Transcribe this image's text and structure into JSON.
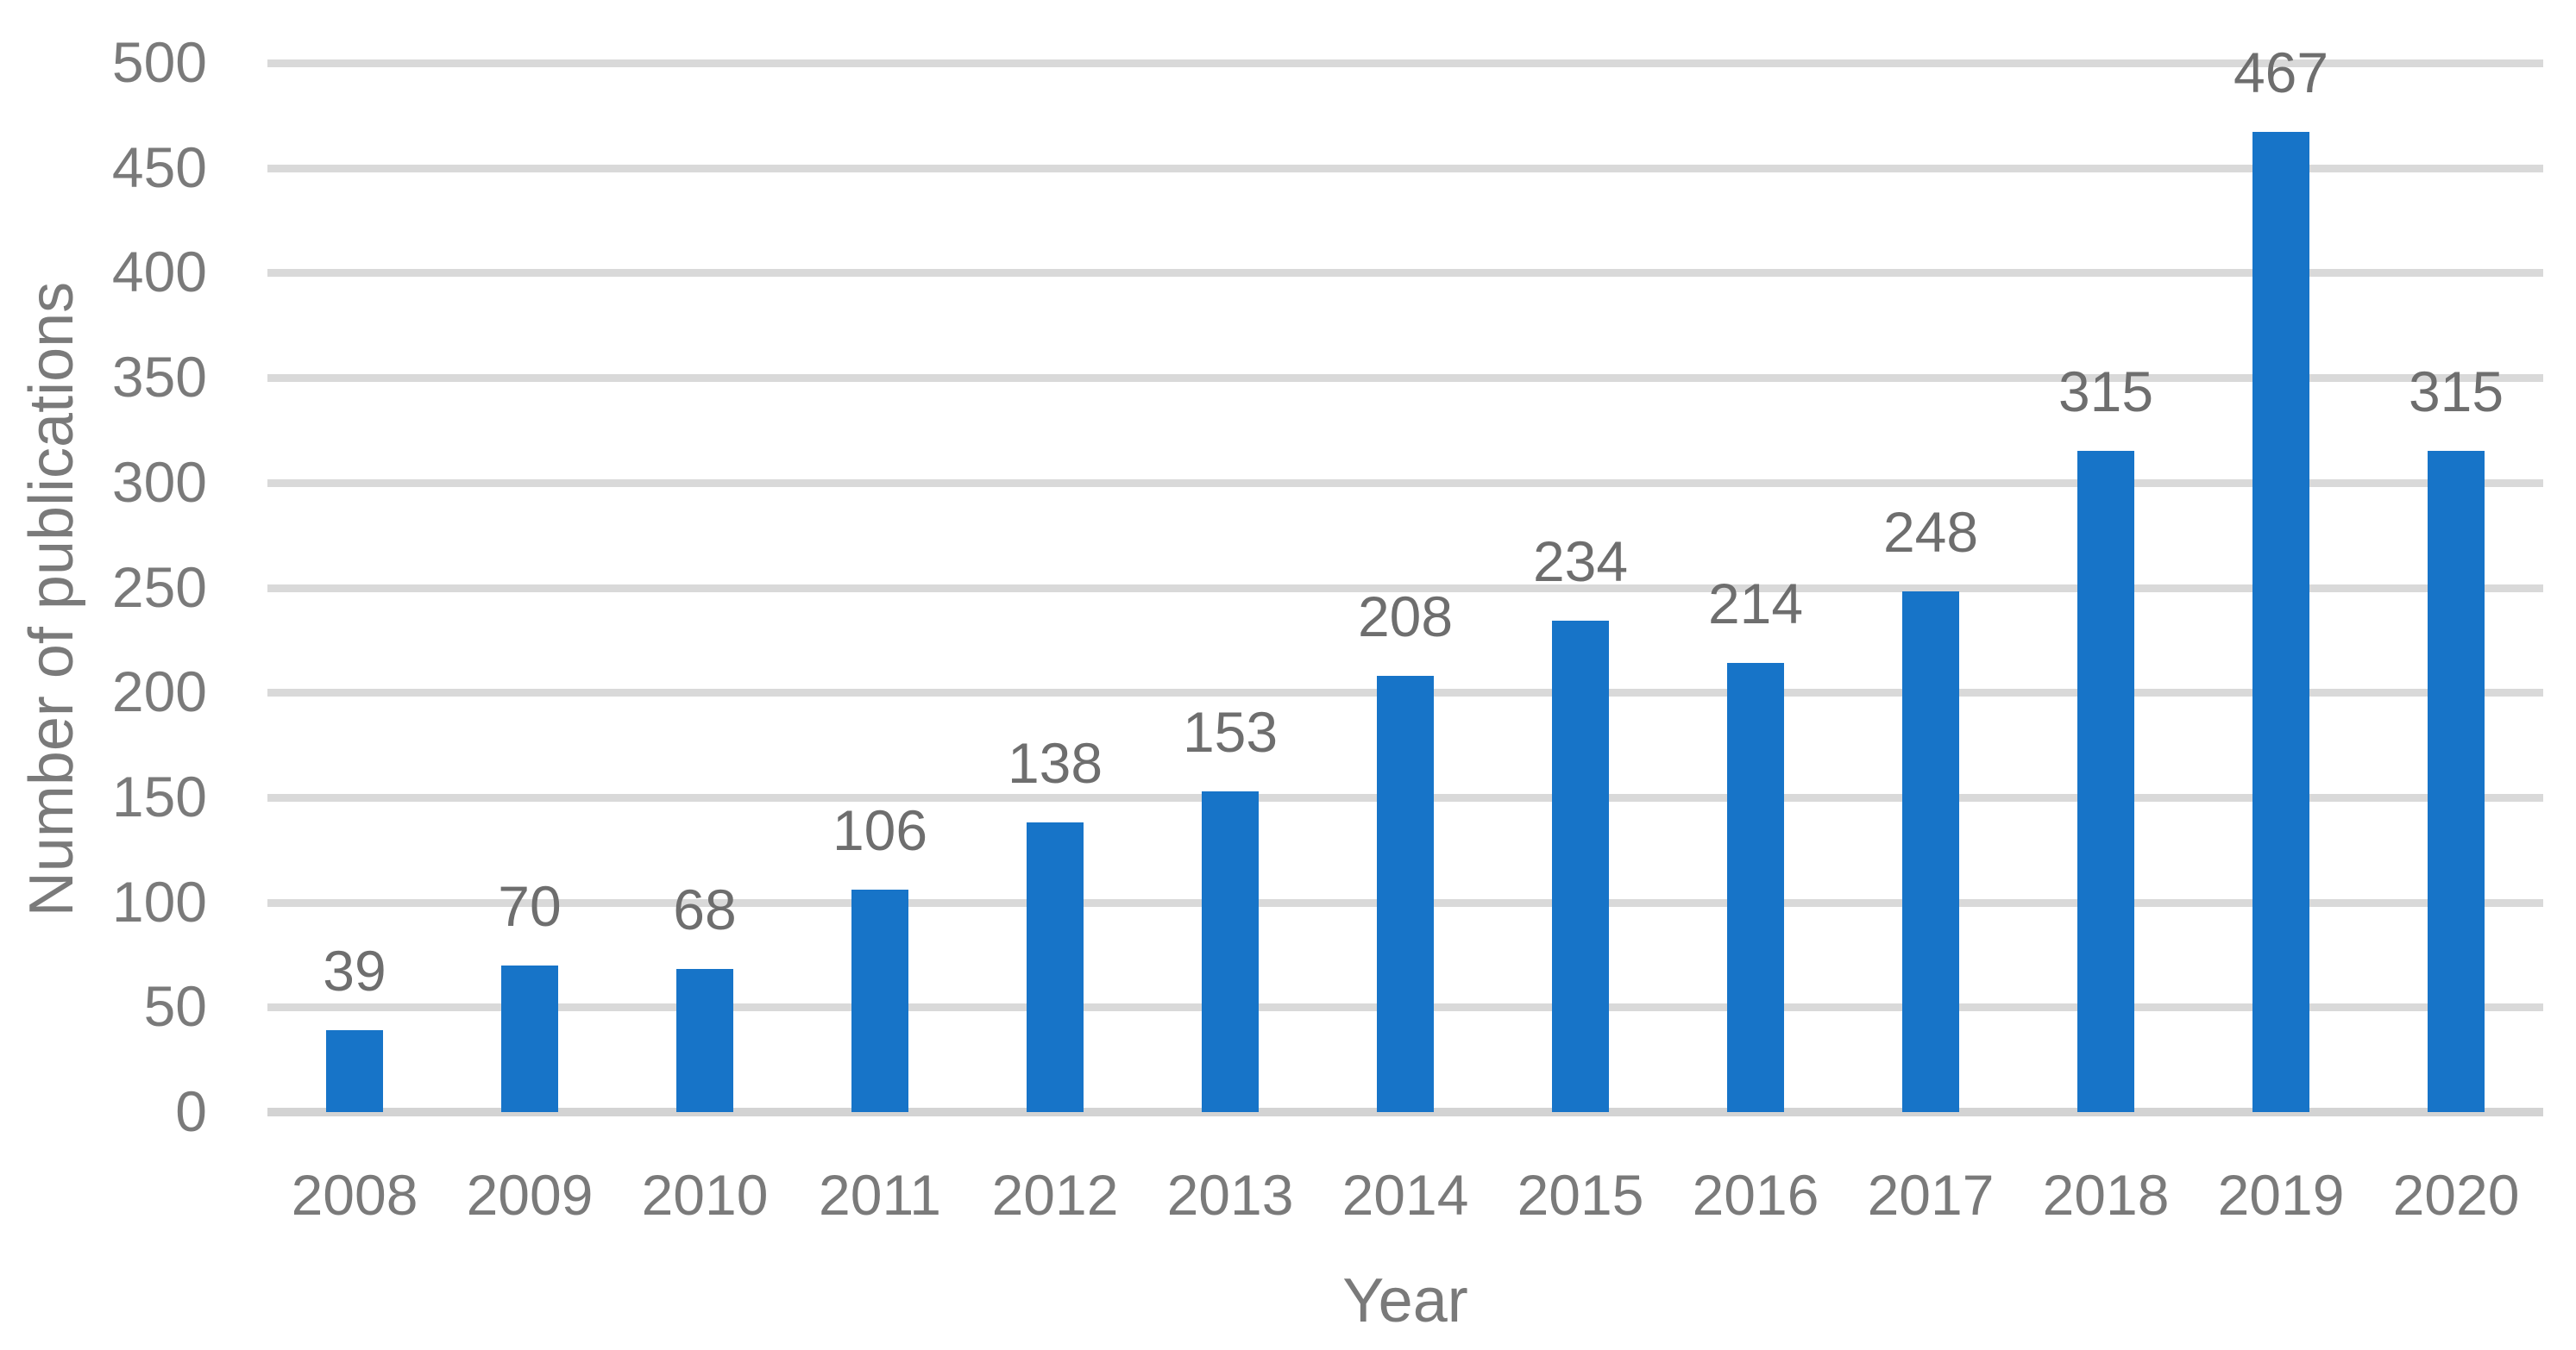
{
  "chart_data": {
    "type": "bar",
    "title": "",
    "categories": [
      "2008",
      "2009",
      "2010",
      "2011",
      "2012",
      "2013",
      "2014",
      "2015",
      "2016",
      "2017",
      "2018",
      "2019",
      "2020"
    ],
    "values": [
      39,
      70,
      68,
      106,
      138,
      153,
      208,
      234,
      214,
      248,
      315,
      467,
      315
    ],
    "data_labels": [
      "39",
      "70",
      "68",
      "106",
      "138",
      "153",
      "208",
      "234",
      "214",
      "248",
      "315",
      "467",
      "315"
    ],
    "xlabel": "Year",
    "ylabel": "Number of publications",
    "ylim": [
      0,
      500
    ],
    "ytick_step": 50,
    "yticks": [
      0,
      50,
      100,
      150,
      200,
      250,
      300,
      350,
      400,
      450,
      500
    ],
    "grid": "horizontal",
    "legend": "none",
    "colors": {
      "bar": "#1774C8",
      "gridline": "#D9D9D9",
      "axis_line": "#D3D3D3",
      "tick_text": "#7A7A7A",
      "data_label_text": "#6E6E6E",
      "axis_title_text": "#7A7A7A",
      "background": "#FFFFFF"
    }
  }
}
